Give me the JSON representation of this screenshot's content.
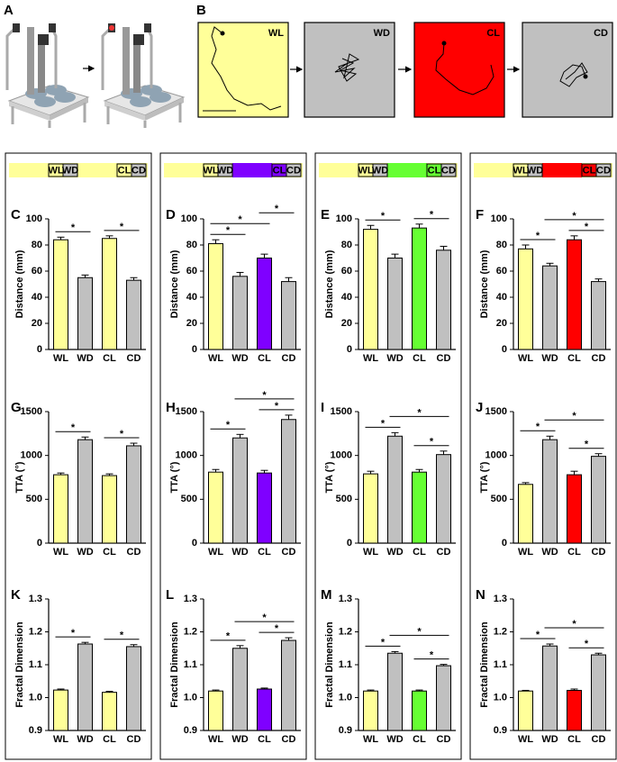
{
  "panel_a": {
    "label": "A"
  },
  "panel_b": {
    "label": "B",
    "trajectories": [
      {
        "label": "WL",
        "color": "#ffff99"
      },
      {
        "label": "WD",
        "color": "#c0c0c0"
      },
      {
        "label": "CL",
        "color": "#ff0000"
      },
      {
        "label": "CD",
        "color": "#c0c0c0"
      }
    ]
  },
  "condition_strips": [
    {
      "labels": [
        "WL",
        "WD",
        "CL",
        "CD"
      ],
      "colors": [
        "#ffff99",
        "#c0c0c0",
        "#ffff99",
        "#c0c0c0"
      ]
    },
    {
      "labels": [
        "WL",
        "WD",
        "CL",
        "CD"
      ],
      "colors": [
        "#ffff99",
        "#c0c0c0",
        "#7f00ff",
        "#c0c0c0"
      ]
    },
    {
      "labels": [
        "WL",
        "WD",
        "CL",
        "CD"
      ],
      "colors": [
        "#ffff99",
        "#c0c0c0",
        "#66ff33",
        "#c0c0c0"
      ]
    },
    {
      "labels": [
        "WL",
        "WD",
        "CL",
        "CD"
      ],
      "colors": [
        "#ffff99",
        "#c0c0c0",
        "#ff0000",
        "#c0c0c0"
      ]
    }
  ],
  "chart_data": [
    {
      "type": "bar",
      "panel": "C",
      "ylabel": "Distance (mm)",
      "categories": [
        "WL",
        "WD",
        "CL",
        "CD"
      ],
      "values": [
        84,
        55,
        85,
        53
      ],
      "errors": [
        2,
        2,
        2,
        2
      ],
      "colors": [
        "#ffff99",
        "#c0c0c0",
        "#ffff99",
        "#c0c0c0"
      ],
      "ylim": [
        0,
        100
      ],
      "yticks": [
        0,
        20,
        40,
        60,
        80,
        100
      ],
      "significance": [
        {
          "between": [
            "WL",
            "WD"
          ],
          "label": "*"
        },
        {
          "between": [
            "CL",
            "CD"
          ],
          "label": "*"
        }
      ]
    },
    {
      "type": "bar",
      "panel": "D",
      "ylabel": "Distance (mm)",
      "categories": [
        "WL",
        "WD",
        "CL",
        "CD"
      ],
      "values": [
        81,
        56,
        70,
        52
      ],
      "errors": [
        3,
        3,
        3,
        3
      ],
      "colors": [
        "#ffff99",
        "#c0c0c0",
        "#7f00ff",
        "#c0c0c0"
      ],
      "ylim": [
        0,
        100
      ],
      "yticks": [
        0,
        20,
        40,
        60,
        80,
        100
      ],
      "significance": [
        {
          "between": [
            "WL",
            "WD"
          ],
          "label": "*"
        },
        {
          "between": [
            "WL",
            "CL"
          ],
          "label": "*"
        },
        {
          "between": [
            "CL",
            "CD"
          ],
          "label": "*"
        }
      ]
    },
    {
      "type": "bar",
      "panel": "E",
      "ylabel": "Distance (mm)",
      "categories": [
        "WL",
        "WD",
        "CL",
        "CD"
      ],
      "values": [
        92,
        70,
        93,
        76
      ],
      "errors": [
        3,
        3,
        3,
        3
      ],
      "colors": [
        "#ffff99",
        "#c0c0c0",
        "#66ff33",
        "#c0c0c0"
      ],
      "ylim": [
        0,
        100
      ],
      "yticks": [
        0,
        20,
        40,
        60,
        80,
        100
      ],
      "significance": [
        {
          "between": [
            "WL",
            "WD"
          ],
          "label": "*"
        },
        {
          "between": [
            "CL",
            "CD"
          ],
          "label": "*"
        }
      ]
    },
    {
      "type": "bar",
      "panel": "F",
      "ylabel": "Distance (mm)",
      "categories": [
        "WL",
        "WD",
        "CL",
        "CD"
      ],
      "values": [
        77,
        64,
        84,
        52
      ],
      "errors": [
        3,
        2,
        3,
        2
      ],
      "colors": [
        "#ffff99",
        "#c0c0c0",
        "#ff0000",
        "#c0c0c0"
      ],
      "ylim": [
        0,
        100
      ],
      "yticks": [
        0,
        20,
        40,
        60,
        80,
        100
      ],
      "significance": [
        {
          "between": [
            "WL",
            "WD"
          ],
          "label": "*"
        },
        {
          "between": [
            "CL",
            "CD"
          ],
          "label": "*"
        },
        {
          "between": [
            "WD",
            "CD"
          ],
          "label": "*"
        }
      ]
    },
    {
      "type": "bar",
      "panel": "G",
      "ylabel": "TTA (°)",
      "categories": [
        "WL",
        "WD",
        "CL",
        "CD"
      ],
      "values": [
        780,
        1180,
        770,
        1110
      ],
      "errors": [
        20,
        30,
        20,
        30
      ],
      "colors": [
        "#ffff99",
        "#c0c0c0",
        "#ffff99",
        "#c0c0c0"
      ],
      "ylim": [
        0,
        1500
      ],
      "yticks": [
        0,
        500,
        1000,
        1500
      ],
      "significance": [
        {
          "between": [
            "WL",
            "WD"
          ],
          "label": "*"
        },
        {
          "between": [
            "CL",
            "CD"
          ],
          "label": "*"
        }
      ]
    },
    {
      "type": "bar",
      "panel": "H",
      "ylabel": "TTA (°)",
      "categories": [
        "WL",
        "WD",
        "CL",
        "CD"
      ],
      "values": [
        810,
        1200,
        800,
        1410
      ],
      "errors": [
        30,
        40,
        30,
        50
      ],
      "colors": [
        "#ffff99",
        "#c0c0c0",
        "#7f00ff",
        "#c0c0c0"
      ],
      "ylim": [
        0,
        1500
      ],
      "yticks": [
        0,
        500,
        1000,
        1500
      ],
      "significance": [
        {
          "between": [
            "WL",
            "WD"
          ],
          "label": "*"
        },
        {
          "between": [
            "CL",
            "CD"
          ],
          "label": "*"
        },
        {
          "between": [
            "WD",
            "CD"
          ],
          "label": "*"
        }
      ]
    },
    {
      "type": "bar",
      "panel": "I",
      "ylabel": "TTA (°)",
      "categories": [
        "WL",
        "WD",
        "CL",
        "CD"
      ],
      "values": [
        790,
        1220,
        810,
        1010
      ],
      "errors": [
        30,
        40,
        30,
        40
      ],
      "colors": [
        "#ffff99",
        "#c0c0c0",
        "#66ff33",
        "#c0c0c0"
      ],
      "ylim": [
        0,
        1500
      ],
      "yticks": [
        0,
        500,
        1000,
        1500
      ],
      "significance": [
        {
          "between": [
            "WL",
            "WD"
          ],
          "label": "*"
        },
        {
          "between": [
            "CL",
            "CD"
          ],
          "label": "*"
        },
        {
          "between": [
            "WD",
            "CD"
          ],
          "label": "*"
        }
      ]
    },
    {
      "type": "bar",
      "panel": "J",
      "ylabel": "TTA (°)",
      "categories": [
        "WL",
        "WD",
        "CL",
        "CD"
      ],
      "values": [
        670,
        1180,
        780,
        990
      ],
      "errors": [
        20,
        40,
        40,
        30
      ],
      "colors": [
        "#ffff99",
        "#c0c0c0",
        "#ff0000",
        "#c0c0c0"
      ],
      "ylim": [
        0,
        1500
      ],
      "yticks": [
        0,
        500,
        1000,
        1500
      ],
      "significance": [
        {
          "between": [
            "WL",
            "WD"
          ],
          "label": "*"
        },
        {
          "between": [
            "CL",
            "CD"
          ],
          "label": "*"
        },
        {
          "between": [
            "WD",
            "CD"
          ],
          "label": "*"
        }
      ]
    },
    {
      "type": "bar",
      "panel": "K",
      "ylabel": "Fractal Dimension",
      "categories": [
        "WL",
        "WD",
        "CL",
        "CD"
      ],
      "values": [
        1.023,
        1.163,
        1.016,
        1.155
      ],
      "errors": [
        0.003,
        0.005,
        0.003,
        0.006
      ],
      "colors": [
        "#ffff99",
        "#c0c0c0",
        "#ffff99",
        "#c0c0c0"
      ],
      "ylim": [
        0.9,
        1.3
      ],
      "yticks": [
        0.9,
        {
          "value": 1.0,
          "label": "1.0"
        },
        1.1,
        1.2,
        1.3
      ],
      "significance": [
        {
          "between": [
            "WL",
            "WD"
          ],
          "label": "*"
        },
        {
          "between": [
            "CL",
            "CD"
          ],
          "label": "*"
        }
      ]
    },
    {
      "type": "bar",
      "panel": "L",
      "ylabel": "Fractal Dimension",
      "categories": [
        "WL",
        "WD",
        "CL",
        "CD"
      ],
      "values": [
        1.02,
        1.15,
        1.026,
        1.174
      ],
      "errors": [
        0.003,
        0.008,
        0.003,
        0.008
      ],
      "colors": [
        "#ffff99",
        "#c0c0c0",
        "#7f00ff",
        "#c0c0c0"
      ],
      "ylim": [
        0.9,
        1.3
      ],
      "yticks": [
        0.9,
        {
          "value": 1.0,
          "label": "1.0"
        },
        1.1,
        1.2,
        1.3
      ],
      "significance": [
        {
          "between": [
            "WL",
            "WD"
          ],
          "label": "*"
        },
        {
          "between": [
            "CL",
            "CD"
          ],
          "label": "*"
        },
        {
          "between": [
            "WD",
            "CD"
          ],
          "label": "*"
        }
      ]
    },
    {
      "type": "bar",
      "panel": "M",
      "ylabel": "Fractal Dimension",
      "categories": [
        "WL",
        "WD",
        "CL",
        "CD"
      ],
      "values": [
        1.02,
        1.135,
        1.02,
        1.097
      ],
      "errors": [
        0.003,
        0.005,
        0.003,
        0.004
      ],
      "colors": [
        "#ffff99",
        "#c0c0c0",
        "#66ff33",
        "#c0c0c0"
      ],
      "ylim": [
        0.9,
        1.3
      ],
      "yticks": [
        0.9,
        {
          "value": 1.0,
          "label": "1.0"
        },
        1.1,
        1.2,
        1.3
      ],
      "significance": [
        {
          "between": [
            "WL",
            "WD"
          ],
          "label": "*"
        },
        {
          "between": [
            "CL",
            "CD"
          ],
          "label": "*"
        },
        {
          "between": [
            "WD",
            "CD"
          ],
          "label": "*"
        }
      ]
    },
    {
      "type": "bar",
      "panel": "N",
      "ylabel": "Fractal Dimension",
      "categories": [
        "WL",
        "WD",
        "CL",
        "CD"
      ],
      "values": [
        1.02,
        1.157,
        1.022,
        1.13
      ],
      "errors": [
        0.002,
        0.006,
        0.004,
        0.005
      ],
      "colors": [
        "#ffff99",
        "#c0c0c0",
        "#ff0000",
        "#c0c0c0"
      ],
      "ylim": [
        0.9,
        1.3
      ],
      "yticks": [
        0.9,
        {
          "value": 1.0,
          "label": "1.0"
        },
        1.1,
        1.2,
        1.3
      ],
      "significance": [
        {
          "between": [
            "WL",
            "WD"
          ],
          "label": "*"
        },
        {
          "between": [
            "CL",
            "CD"
          ],
          "label": "*"
        },
        {
          "between": [
            "WD",
            "CD"
          ],
          "label": "*"
        }
      ]
    }
  ]
}
